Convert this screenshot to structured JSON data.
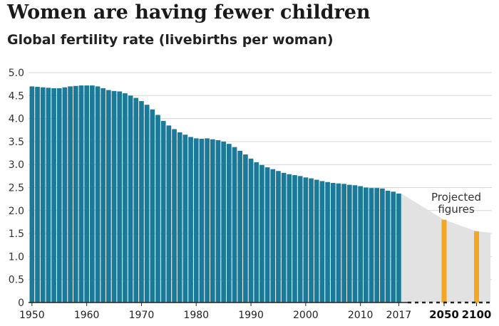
{
  "title": "Women are having fewer children",
  "subtitle": "Global fertility rate (livebirths per woman)",
  "chart_data": {
    "type": "bar",
    "title": "Women are having fewer children",
    "subtitle": "Global fertility rate (livebirths per woman)",
    "ylim": [
      0,
      5.0
    ],
    "y_ticks": [
      0,
      0.5,
      1.0,
      1.5,
      2.0,
      2.5,
      3.0,
      3.5,
      4.0,
      4.5,
      5.0
    ],
    "y_tick_labels": [
      "0",
      "0.5",
      "1.0",
      "1.5",
      "2.0",
      "2.5",
      "3.0",
      "3.5",
      "4.0",
      "4.5",
      "5.0"
    ],
    "grid": true,
    "x_tick_labels": [
      "1950",
      "1960",
      "1970",
      "1980",
      "1990",
      "2000",
      "2010",
      "2017"
    ],
    "series": [
      {
        "color": "#1b7a99",
        "x": [
          1950,
          1951,
          1952,
          1953,
          1954,
          1955,
          1956,
          1957,
          1958,
          1959,
          1960,
          1961,
          1962,
          1963,
          1964,
          1965,
          1966,
          1967,
          1968,
          1969,
          1970,
          1971,
          1972,
          1973,
          1974,
          1975,
          1976,
          1977,
          1978,
          1979,
          1980,
          1981,
          1982,
          1983,
          1984,
          1985,
          1986,
          1987,
          1988,
          1989,
          1990,
          1991,
          1992,
          1993,
          1994,
          1995,
          1996,
          1997,
          1998,
          1999,
          2000,
          2001,
          2002,
          2003,
          2004,
          2005,
          2006,
          2007,
          2008,
          2009,
          2010,
          2011,
          2012,
          2013,
          2014,
          2015,
          2016,
          2017
        ],
        "values": [
          4.7,
          4.69,
          4.68,
          4.67,
          4.66,
          4.66,
          4.68,
          4.7,
          4.71,
          4.72,
          4.72,
          4.72,
          4.7,
          4.66,
          4.62,
          4.6,
          4.59,
          4.55,
          4.5,
          4.45,
          4.38,
          4.3,
          4.2,
          4.08,
          3.95,
          3.85,
          3.77,
          3.7,
          3.65,
          3.6,
          3.57,
          3.56,
          3.57,
          3.55,
          3.53,
          3.5,
          3.45,
          3.38,
          3.3,
          3.22,
          3.13,
          3.05,
          2.99,
          2.94,
          2.9,
          2.86,
          2.82,
          2.79,
          2.77,
          2.75,
          2.72,
          2.7,
          2.67,
          2.64,
          2.62,
          2.6,
          2.59,
          2.58,
          2.56,
          2.55,
          2.53,
          2.5,
          2.49,
          2.49,
          2.48,
          2.43,
          2.41,
          2.37
        ]
      },
      {
        "name": "Projected figures",
        "color": "#f5a623",
        "x": [
          2050,
          2100
        ],
        "x_labels": [
          "2050",
          "2100"
        ],
        "values": [
          1.8,
          1.55
        ]
      }
    ],
    "annotation": [
      "Projected",
      "figures"
    ]
  }
}
